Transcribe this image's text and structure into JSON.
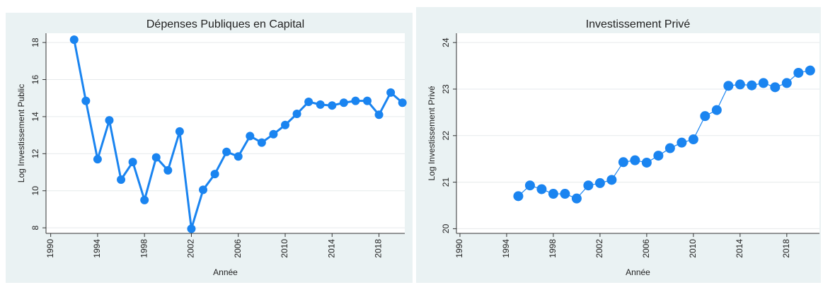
{
  "chart_data": [
    {
      "type": "line",
      "title": "Dépenses Publiques en Capital",
      "xlabel": "Année",
      "ylabel": "Log Investissement Public",
      "x": [
        1992,
        1993,
        1994,
        1995,
        1996,
        1997,
        1998,
        1999,
        2000,
        2001,
        2002,
        2003,
        2004,
        2005,
        2006,
        2007,
        2008,
        2009,
        2010,
        2011,
        2012,
        2013,
        2014,
        2015,
        2016,
        2017,
        2018,
        2019,
        2020
      ],
      "values": [
        18.15,
        14.85,
        11.7,
        13.8,
        10.6,
        11.55,
        9.5,
        11.8,
        11.1,
        13.2,
        7.95,
        10.05,
        10.9,
        12.1,
        11.85,
        12.95,
        12.6,
        13.05,
        13.55,
        14.15,
        14.8,
        14.65,
        14.6,
        14.75,
        14.85,
        14.85,
        14.1,
        15.3,
        14.75
      ],
      "color": "#1a84f0",
      "xlim": [
        1989.6,
        2020.2
      ],
      "ylim": [
        7.7,
        18.5
      ],
      "xticks": [
        1990,
        1994,
        1998,
        2002,
        2006,
        2010,
        2014,
        2018
      ],
      "yticks": [
        8,
        10,
        12,
        14,
        16,
        18
      ],
      "grid": true
    },
    {
      "type": "line",
      "title": "Investissement Privé",
      "xlabel": "Année",
      "ylabel": "Log Investissement Privé",
      "x": [
        1995,
        1996,
        1997,
        1998,
        1999,
        2000,
        2001,
        2002,
        2003,
        2004,
        2005,
        2006,
        2007,
        2008,
        2009,
        2010,
        2011,
        2012,
        2013,
        2014,
        2015,
        2016,
        2017,
        2018,
        2019,
        2020
      ],
      "values": [
        20.7,
        20.93,
        20.85,
        20.75,
        20.75,
        20.65,
        20.93,
        20.98,
        21.05,
        21.43,
        21.47,
        21.42,
        21.57,
        21.73,
        21.85,
        21.92,
        22.42,
        22.55,
        23.07,
        23.1,
        23.08,
        23.13,
        23.04,
        23.13,
        23.35,
        23.4
      ],
      "color": "#1a84f0",
      "xlim": [
        1989.7,
        2020.8
      ],
      "ylim": [
        19.9,
        24.2
      ],
      "xticks": [
        1990,
        1994,
        1998,
        2002,
        2006,
        2010,
        2014,
        2018
      ],
      "yticks": [
        20,
        21,
        22,
        23,
        24
      ],
      "grid": true
    }
  ]
}
